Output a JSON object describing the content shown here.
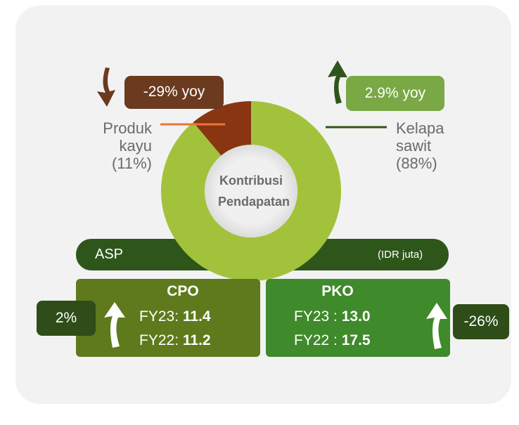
{
  "chart_data": {
    "type": "pie",
    "center_label": "Kontribusi Pendapatan",
    "categories": [
      "Kelapa sawit",
      "Produk kayu"
    ],
    "values": [
      88,
      11
    ],
    "value_labels": [
      "(88%)",
      "(11%)"
    ],
    "colors": [
      "#a3c23c",
      "#8a3512"
    ],
    "annotations": [
      "2.9% yoy",
      "-29% yoy"
    ]
  },
  "asp": {
    "title": "ASP",
    "unit": "(IDR juta)",
    "products": [
      {
        "name": "CPO",
        "change": "2%",
        "rows": [
          {
            "label": "FY23:",
            "value": "11.4"
          },
          {
            "label": "FY22:",
            "value": "11.2"
          }
        ]
      },
      {
        "name": "PKO",
        "change": "-26%",
        "rows": [
          {
            "label": "FY23 :",
            "value": "13.0"
          },
          {
            "label": "FY22 :",
            "value": "17.5"
          }
        ]
      }
    ]
  }
}
